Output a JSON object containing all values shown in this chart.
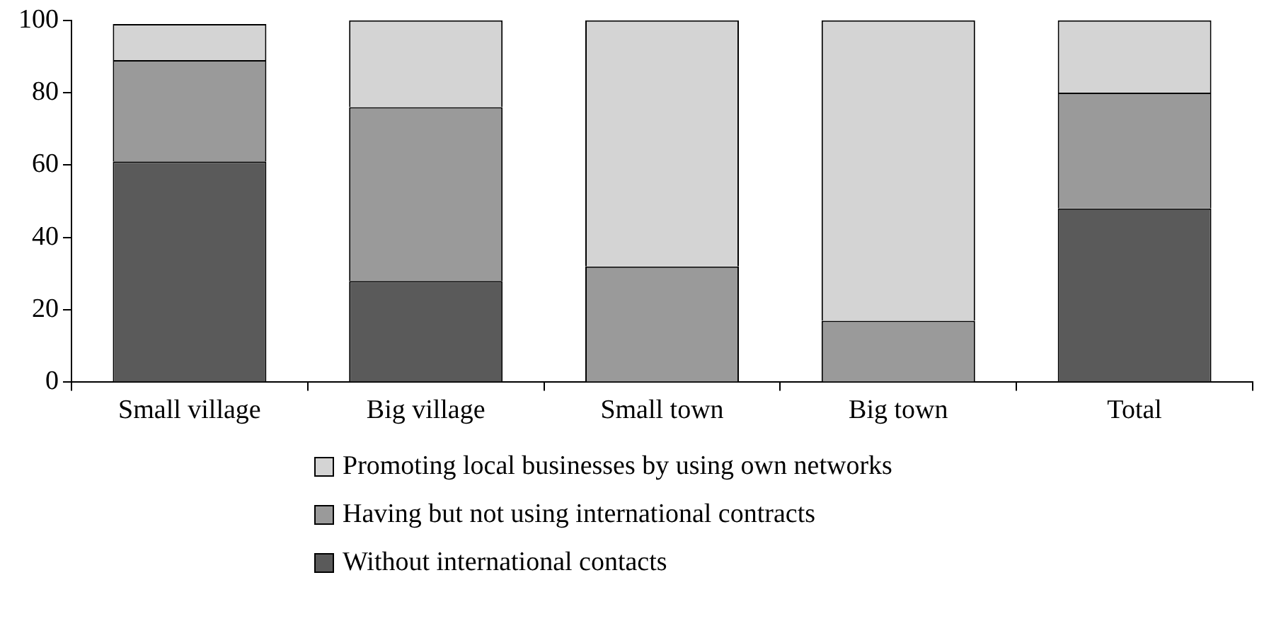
{
  "chart_data": {
    "type": "bar",
    "stacked": true,
    "categories": [
      "Small village",
      "Big village",
      "Small town",
      "Big town",
      "Total"
    ],
    "series": [
      {
        "name": "Without international contacts",
        "color": "#5a5a5a",
        "values": [
          61,
          28,
          0,
          0,
          48
        ]
      },
      {
        "name": "Having but not using international contracts",
        "color": "#9a9a9a",
        "values": [
          28,
          48,
          32,
          17,
          32
        ]
      },
      {
        "name": "Promoting local businesses by using own networks",
        "color": "#d4d4d4",
        "values": [
          10,
          24,
          68,
          83,
          20
        ]
      }
    ],
    "ylim": [
      0,
      100
    ],
    "yticks": [
      0,
      20,
      40,
      60,
      80,
      100
    ],
    "grid": false,
    "legend": "bottom"
  }
}
